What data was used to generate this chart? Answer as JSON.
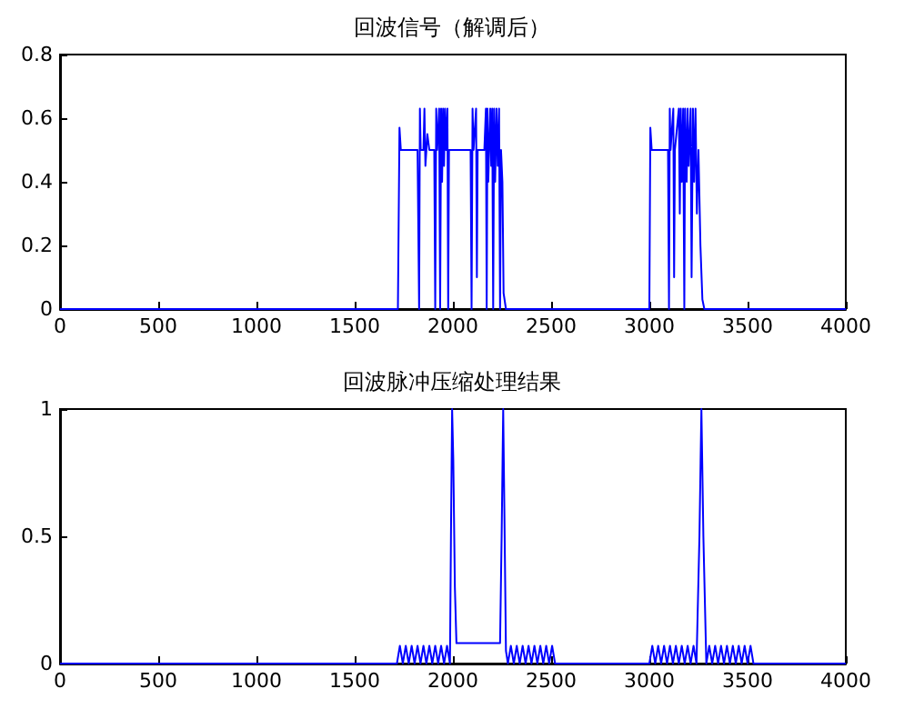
{
  "chart_data": [
    {
      "type": "line",
      "title": "回波信号（解调后）",
      "grid": false,
      "marker": "none",
      "line_style": "solid",
      "xlim": [
        0,
        4000
      ],
      "ylim": [
        0,
        0.8
      ],
      "xticks": [
        0,
        500,
        1000,
        1500,
        2000,
        2500,
        3000,
        3500,
        4000
      ],
      "yticks": [
        0,
        0.2,
        0.4,
        0.6,
        0.8
      ],
      "series": [
        {
          "color": "#0000ff",
          "x": [
            0,
            1720,
            1728,
            1735,
            1820,
            1828,
            1832,
            1836,
            1850,
            1855,
            1860,
            1870,
            1880,
            1905,
            1910,
            1915,
            1920,
            1930,
            1935,
            1940,
            1945,
            1950,
            1955,
            1960,
            1965,
            1972,
            1976,
            1980,
            2070,
            2090,
            2095,
            2100,
            2105,
            2118,
            2122,
            2126,
            2160,
            2168,
            2172,
            2176,
            2180,
            2190,
            2195,
            2200,
            2205,
            2210,
            2215,
            2222,
            2228,
            2235,
            2240,
            2245,
            2252,
            2258,
            2270,
            3000,
            3005,
            3012,
            3080,
            3095,
            3100,
            3104,
            3108,
            3122,
            3126,
            3130,
            3150,
            3155,
            3160,
            3165,
            3172,
            3178,
            3182,
            3190,
            3195,
            3200,
            3210,
            3215,
            3222,
            3228,
            3235,
            3242,
            3250,
            3260,
            3270,
            3280,
            4000
          ],
          "values": [
            0,
            0,
            0.57,
            0.5,
            0.5,
            0,
            0.63,
            0.5,
            0.5,
            0.63,
            0.45,
            0.55,
            0.5,
            0.5,
            0,
            0.63,
            0.5,
            0.63,
            0,
            0.63,
            0.4,
            0.63,
            0.45,
            0.63,
            0.5,
            0.63,
            0,
            0.5,
            0.5,
            0.5,
            0,
            0.63,
            0.5,
            0.63,
            0.1,
            0.5,
            0.5,
            0.63,
            0,
            0.63,
            0.4,
            0.63,
            0.45,
            0.63,
            0,
            0.63,
            0.4,
            0.63,
            0.45,
            0.63,
            0,
            0.5,
            0.4,
            0.05,
            0,
            0,
            0.57,
            0.5,
            0.5,
            0.5,
            0,
            0.63,
            0.5,
            0.63,
            0.1,
            0.5,
            0.63,
            0.3,
            0.63,
            0.4,
            0.63,
            0,
            0.63,
            0.4,
            0.63,
            0.45,
            0.63,
            0.1,
            0.63,
            0.4,
            0.63,
            0.3,
            0.5,
            0.2,
            0.03,
            0,
            0
          ]
        }
      ]
    },
    {
      "type": "line",
      "title": "回波脉冲压缩处理结果",
      "grid": false,
      "marker": "none",
      "line_style": "solid",
      "xlim": [
        0,
        4000
      ],
      "ylim": [
        0,
        1
      ],
      "xticks": [
        0,
        500,
        1000,
        1500,
        2000,
        2500,
        3000,
        3500,
        4000
      ],
      "yticks": [
        0,
        0.5,
        1
      ],
      "series": [
        {
          "color": "#0000ff",
          "x": [
            0,
            1715,
            1730,
            1745,
            1760,
            1775,
            1790,
            1805,
            1820,
            1835,
            1850,
            1865,
            1880,
            1895,
            1910,
            1925,
            1940,
            1955,
            1970,
            1985,
            1990,
            1996,
            2002,
            2010,
            2018,
            2240,
            2248,
            2256,
            2262,
            2270,
            2280,
            2295,
            2310,
            2325,
            2340,
            2355,
            2370,
            2385,
            2400,
            2415,
            2430,
            2445,
            2460,
            2475,
            2490,
            2505,
            2520,
            3000,
            3015,
            3030,
            3045,
            3060,
            3075,
            3090,
            3105,
            3120,
            3135,
            3150,
            3165,
            3180,
            3195,
            3210,
            3225,
            3240,
            3255,
            3265,
            3275,
            3290,
            3305,
            3320,
            3335,
            3350,
            3365,
            3380,
            3395,
            3410,
            3425,
            3440,
            3455,
            3470,
            3485,
            3500,
            3515,
            3530,
            4000
          ],
          "values": [
            0,
            0,
            0.07,
            0,
            0.07,
            0,
            0.07,
            0,
            0.07,
            0,
            0.07,
            0,
            0.07,
            0,
            0.07,
            0,
            0.07,
            0,
            0.07,
            0,
            0.5,
            1,
            0.8,
            0.3,
            0.08,
            0.08,
            0.5,
            1,
            0.6,
            0.05,
            0,
            0.07,
            0,
            0.07,
            0,
            0.07,
            0,
            0.07,
            0,
            0.07,
            0,
            0.07,
            0,
            0.07,
            0,
            0.07,
            0,
            0,
            0.07,
            0,
            0.07,
            0,
            0.07,
            0,
            0.07,
            0,
            0.07,
            0,
            0.07,
            0,
            0.07,
            0,
            0.07,
            0,
            0.5,
            1,
            0.5,
            0,
            0.07,
            0,
            0.07,
            0,
            0.07,
            0,
            0.07,
            0,
            0.07,
            0,
            0.07,
            0,
            0.07,
            0,
            0.07,
            0,
            0
          ]
        }
      ]
    }
  ]
}
